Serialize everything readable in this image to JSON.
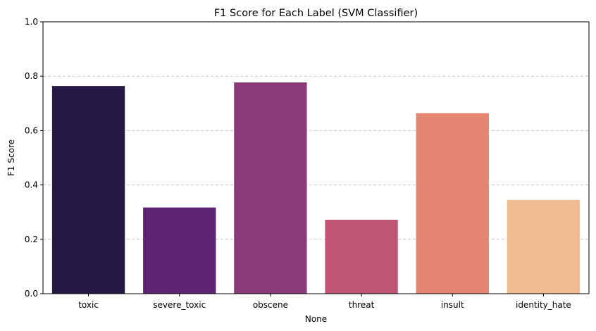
{
  "chart_data": {
    "type": "bar",
    "title": "F1 Score for Each Label (SVM Classifier)",
    "xlabel": "None",
    "ylabel": "F1 Score",
    "categories": [
      "toxic",
      "severe_toxic",
      "obscene",
      "threat",
      "insult",
      "identity_hate"
    ],
    "values": [
      0.764,
      0.317,
      0.777,
      0.272,
      0.664,
      0.345
    ],
    "colors": [
      "#261a45",
      "#5c2471",
      "#893a77",
      "#c05574",
      "#e48571",
      "#efbc8f"
    ],
    "ylim": [
      0,
      1.0
    ],
    "yticks": [
      0.0,
      0.2,
      0.4,
      0.6,
      0.8,
      1.0
    ],
    "ytick_labels": [
      "0.0",
      "0.2",
      "0.4",
      "0.6",
      "0.8",
      "1.0"
    ],
    "grid": {
      "axis": "y",
      "style": "dashed",
      "color": "#c8c8c8"
    },
    "legend": "none"
  }
}
